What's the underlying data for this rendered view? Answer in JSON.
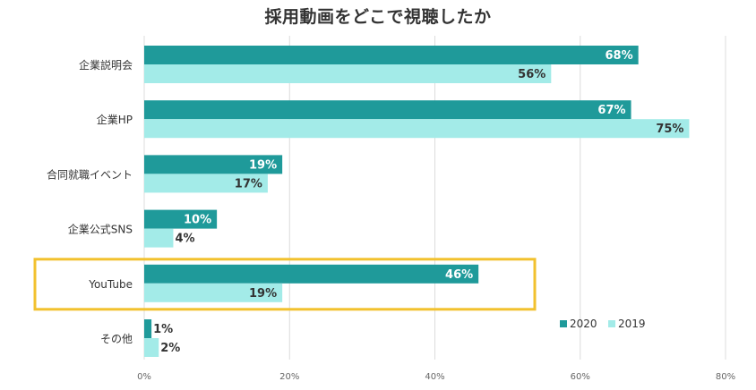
{
  "chart_data": {
    "type": "bar",
    "orientation": "horizontal",
    "title": "採用動画をどこで視聴したか",
    "categories": [
      "企業説明会",
      "企業HP",
      "合同就職イベント",
      "企業公式SNS",
      "YouTube",
      "その他"
    ],
    "series": [
      {
        "name": "2020",
        "values": [
          68,
          67,
          19,
          10,
          46,
          1
        ],
        "labels": [
          "68%",
          "67%",
          "19%",
          "10%",
          "46%",
          "1%"
        ]
      },
      {
        "name": "2019",
        "values": [
          56,
          75,
          17,
          4,
          19,
          2
        ],
        "labels": [
          "56%",
          "75%",
          "17%",
          "4%",
          "19%",
          "2%"
        ]
      }
    ],
    "xlim": [
      0,
      80
    ],
    "xticks": [
      0,
      20,
      40,
      60,
      80
    ],
    "xtick_labels": [
      "0%",
      "20%",
      "40%",
      "60%",
      "80%"
    ],
    "grid": true,
    "legend_position": "bottom-right",
    "highlighted_category": "YouTube",
    "colors": {
      "2020": "#1f9a9a",
      "2019": "#a3ebe8",
      "highlight": "#f2c12e",
      "grid": "#dcdcdc",
      "text": "#333333"
    }
  }
}
